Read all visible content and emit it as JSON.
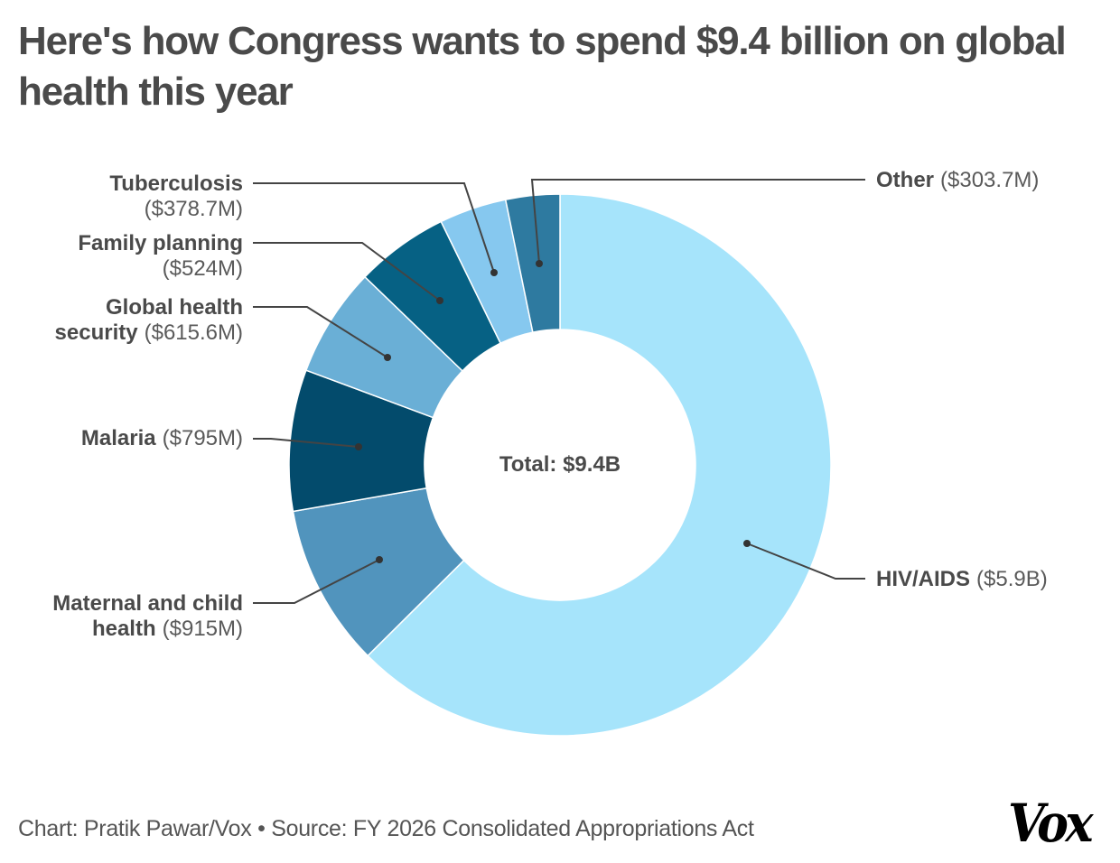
{
  "title": "Here's how Congress wants to spend $9.4 billion on global health this year",
  "footer": {
    "credit": "Chart: Pratik Pawar/Vox • Source: FY 2026 Consolidated Appropriations Act",
    "logo": "Vox"
  },
  "chart_data": {
    "type": "pie",
    "variant": "donut",
    "title": "Here's how Congress wants to spend $9.4 billion on global health this year",
    "center_label": "Total: $9.4B",
    "unit": "USD millions",
    "slices": [
      {
        "name": "HIV/AIDS",
        "value_label": "($5.9B)",
        "value": 5900,
        "color": "#a6e4fb",
        "label_side": "right"
      },
      {
        "name": "Maternal and child health",
        "value_label": "($915M)",
        "value": 915,
        "color": "#5194bd",
        "label_side": "left"
      },
      {
        "name": "Malaria",
        "value_label": "($795M)",
        "value": 795,
        "color": "#034b6c",
        "label_side": "left"
      },
      {
        "name": "Global health security",
        "value_label": "($615.6M)",
        "value": 615.6,
        "color": "#6aafd6",
        "label_side": "left"
      },
      {
        "name": "Family planning",
        "value_label": "($524M)",
        "value": 524,
        "color": "#066184",
        "label_side": "left"
      },
      {
        "name": "Tuberculosis",
        "value_label": "($378.7M)",
        "value": 378.7,
        "color": "#86c8ef",
        "label_side": "left"
      },
      {
        "name": "Other",
        "value_label": "($303.7M)",
        "value": 303.7,
        "color": "#2e7aa0",
        "label_side": "right"
      }
    ],
    "total": 9432,
    "total_label": "$9.4B"
  },
  "labels": {
    "tb": {
      "line1_bold": "Tuberculosis",
      "line2_val": "($378.7M)"
    },
    "fp": {
      "line1_bold": "Family planning",
      "line2_val": "($524M)"
    },
    "ghs": {
      "line1_bold": "Global health",
      "line2_bold": "security",
      "line2_val": "($615.6M)"
    },
    "malaria": {
      "bold": "Malaria",
      "val": "($795M)"
    },
    "mch": {
      "line1_bold": "Maternal and child",
      "line2_bold": "health",
      "line2_val": "($915M)"
    },
    "other": {
      "bold": "Other",
      "val": "($303.7M)"
    },
    "hiv": {
      "bold": "HIV/AIDS",
      "val": "($5.9B)"
    }
  }
}
